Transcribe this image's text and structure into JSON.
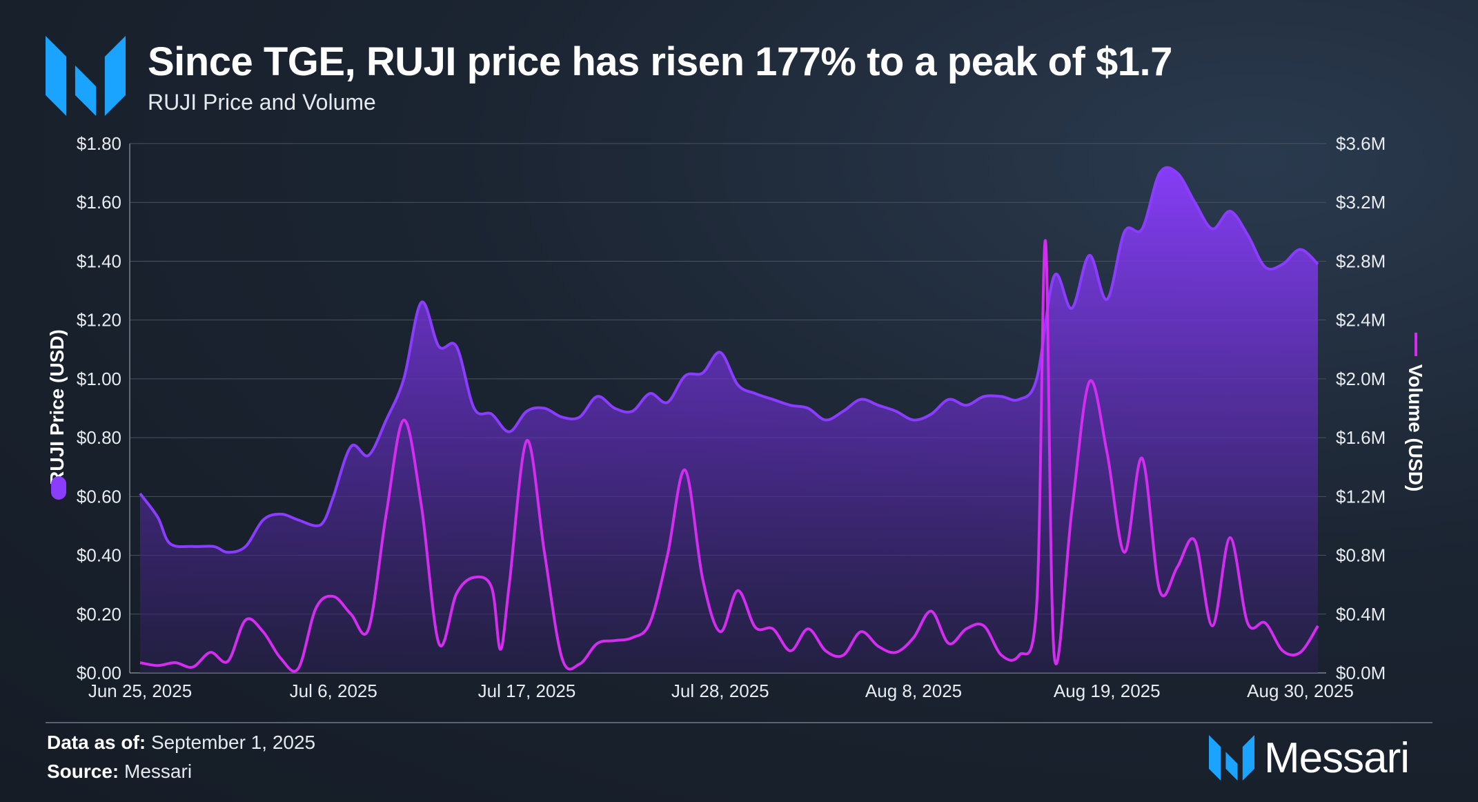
{
  "header": {
    "title": "Since TGE, RUJI price has risen 177% to a peak of $1.7",
    "subtitle": "RUJI Price and Volume"
  },
  "footer": {
    "data_as_of_label": "Data as of:",
    "data_as_of_value": "September 1, 2025",
    "source_label": "Source:",
    "source_value": "Messari",
    "brand": "Messari"
  },
  "colors": {
    "price": "#8b3dff",
    "volume": "#d42cf0",
    "logo": "#1aa3ff"
  },
  "chart_data": {
    "type": "area",
    "x_ticks": [
      "Jun 25, 2025",
      "Jul 6, 2025",
      "Jul 17, 2025",
      "Jul 28, 2025",
      "Aug 8, 2025",
      "Aug 19, 2025",
      "Aug 30, 2025"
    ],
    "y_left": {
      "label": "RUJI Price (USD)",
      "ticks": [
        "$0.00",
        "$0.20",
        "$0.40",
        "$0.60",
        "$0.80",
        "$1.00",
        "$1.20",
        "$1.40",
        "$1.60",
        "$1.80"
      ],
      "min": 0,
      "max": 1.8
    },
    "y_right": {
      "label": "Volume (USD)",
      "ticks": [
        "$0.0M",
        "$0.4M",
        "$0.8M",
        "$1.2M",
        "$1.6M",
        "$2.0M",
        "$2.4M",
        "$2.8M",
        "$3.2M",
        "$3.6M"
      ],
      "min": 0,
      "max": 3.6
    },
    "x_start": "2025-06-25",
    "grid": true,
    "series": [
      {
        "name": "RUJI Price (USD)",
        "type": "area",
        "axis": "left",
        "points": [
          [
            0,
            0.61
          ],
          [
            1,
            0.53
          ],
          [
            1.7,
            0.44
          ],
          [
            3,
            0.43
          ],
          [
            4.2,
            0.43
          ],
          [
            5,
            0.41
          ],
          [
            6,
            0.43
          ],
          [
            7,
            0.52
          ],
          [
            8,
            0.54
          ],
          [
            9,
            0.52
          ],
          [
            10,
            0.5
          ],
          [
            10.5,
            0.52
          ],
          [
            11,
            0.6
          ],
          [
            12,
            0.77
          ],
          [
            13,
            0.74
          ],
          [
            14,
            0.86
          ],
          [
            15,
            1.0
          ],
          [
            16,
            1.26
          ],
          [
            17,
            1.11
          ],
          [
            18,
            1.11
          ],
          [
            19,
            0.9
          ],
          [
            20,
            0.88
          ],
          [
            21,
            0.82
          ],
          [
            22,
            0.89
          ],
          [
            23,
            0.9
          ],
          [
            24,
            0.87
          ],
          [
            25,
            0.87
          ],
          [
            26,
            0.94
          ],
          [
            27,
            0.9
          ],
          [
            28,
            0.89
          ],
          [
            29,
            0.95
          ],
          [
            30,
            0.92
          ],
          [
            31,
            1.01
          ],
          [
            32,
            1.02
          ],
          [
            33,
            1.09
          ],
          [
            34,
            0.98
          ],
          [
            35,
            0.95
          ],
          [
            36,
            0.93
          ],
          [
            37,
            0.91
          ],
          [
            38,
            0.9
          ],
          [
            39,
            0.86
          ],
          [
            40,
            0.89
          ],
          [
            41,
            0.93
          ],
          [
            42,
            0.91
          ],
          [
            43,
            0.89
          ],
          [
            44,
            0.86
          ],
          [
            45,
            0.88
          ],
          [
            46,
            0.93
          ],
          [
            47,
            0.91
          ],
          [
            48,
            0.94
          ],
          [
            49,
            0.94
          ],
          [
            50,
            0.93
          ],
          [
            51,
            1.0
          ],
          [
            52,
            1.35
          ],
          [
            53,
            1.24
          ],
          [
            54,
            1.42
          ],
          [
            55,
            1.27
          ],
          [
            56,
            1.5
          ],
          [
            57,
            1.51
          ],
          [
            58,
            1.7
          ],
          [
            59,
            1.7
          ],
          [
            60,
            1.6
          ],
          [
            61,
            1.51
          ],
          [
            62,
            1.57
          ],
          [
            63,
            1.49
          ],
          [
            64,
            1.38
          ],
          [
            65,
            1.39
          ],
          [
            66,
            1.44
          ],
          [
            67,
            1.39
          ]
        ]
      },
      {
        "name": "Volume (USD)",
        "type": "line",
        "axis": "right",
        "points": [
          [
            0,
            0.07
          ],
          [
            1,
            0.05
          ],
          [
            2,
            0.07
          ],
          [
            3,
            0.04
          ],
          [
            4,
            0.14
          ],
          [
            5,
            0.08
          ],
          [
            6,
            0.36
          ],
          [
            7,
            0.28
          ],
          [
            8,
            0.1
          ],
          [
            9,
            0.03
          ],
          [
            10,
            0.44
          ],
          [
            11,
            0.52
          ],
          [
            12,
            0.4
          ],
          [
            13,
            0.3
          ],
          [
            14,
            1.08
          ],
          [
            15,
            1.72
          ],
          [
            16,
            1.14
          ],
          [
            17,
            0.2
          ],
          [
            18,
            0.54
          ],
          [
            19,
            0.65
          ],
          [
            20,
            0.58
          ],
          [
            20.5,
            0.16
          ],
          [
            21,
            0.6
          ],
          [
            22,
            1.58
          ],
          [
            23,
            0.82
          ],
          [
            24,
            0.1
          ],
          [
            25,
            0.06
          ],
          [
            26,
            0.2
          ],
          [
            27,
            0.22
          ],
          [
            28,
            0.24
          ],
          [
            29,
            0.34
          ],
          [
            30,
            0.8
          ],
          [
            31,
            1.38
          ],
          [
            32,
            0.64
          ],
          [
            33,
            0.28
          ],
          [
            34,
            0.56
          ],
          [
            35,
            0.31
          ],
          [
            36,
            0.3
          ],
          [
            37,
            0.15
          ],
          [
            38,
            0.3
          ],
          [
            39,
            0.15
          ],
          [
            40,
            0.12
          ],
          [
            41,
            0.28
          ],
          [
            42,
            0.18
          ],
          [
            43,
            0.14
          ],
          [
            44,
            0.24
          ],
          [
            45,
            0.42
          ],
          [
            46,
            0.2
          ],
          [
            47,
            0.3
          ],
          [
            48,
            0.32
          ],
          [
            49,
            0.12
          ],
          [
            50,
            0.12
          ],
          [
            51,
            0.46
          ],
          [
            51.5,
            2.94
          ],
          [
            52,
            0.12
          ],
          [
            53,
            1.1
          ],
          [
            54,
            1.98
          ],
          [
            55,
            1.5
          ],
          [
            56,
            0.82
          ],
          [
            57,
            1.46
          ],
          [
            58,
            0.56
          ],
          [
            59,
            0.72
          ],
          [
            60,
            0.9
          ],
          [
            61,
            0.32
          ],
          [
            62,
            0.92
          ],
          [
            63,
            0.34
          ],
          [
            64,
            0.34
          ],
          [
            65,
            0.15
          ],
          [
            66,
            0.14
          ],
          [
            67,
            0.32
          ]
        ]
      }
    ]
  }
}
